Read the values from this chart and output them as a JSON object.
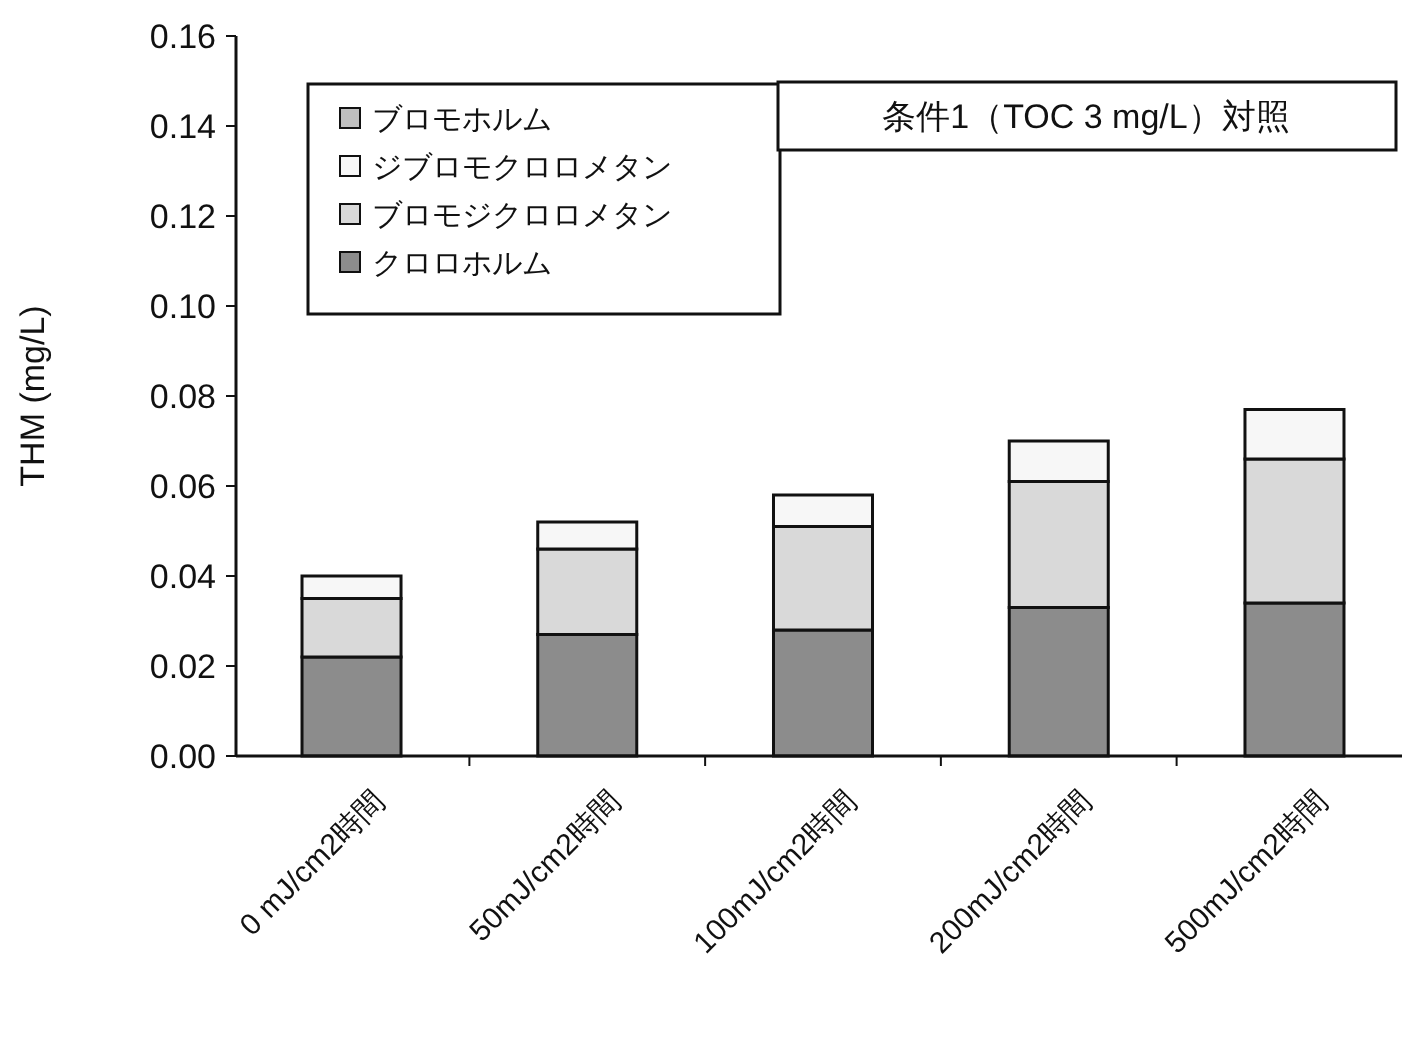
{
  "chart_data": {
    "type": "bar",
    "stacked": true,
    "ylabel": "THM (mg/L)",
    "categories": [
      "0 mJ/cm2時間",
      "50mJ/cm2時間",
      "100mJ/cm2時間",
      "200mJ/cm2時間",
      "500mJ/cm2時間"
    ],
    "series": [
      {
        "name": "クロロホルム",
        "color": "#8c8c8c",
        "values": [
          0.022,
          0.027,
          0.028,
          0.033,
          0.034
        ]
      },
      {
        "name": "ブロモジクロロメタン",
        "color": "#d9d9d9",
        "values": [
          0.013,
          0.019,
          0.023,
          0.028,
          0.032
        ]
      },
      {
        "name": "ジブロモクロロメタン",
        "color": "#f7f7f7",
        "values": [
          0.005,
          0.006,
          0.007,
          0.009,
          0.011
        ]
      },
      {
        "name": "ブロモホルム",
        "color": "#bfbfbf",
        "values": [
          0,
          0,
          0,
          0,
          0
        ]
      }
    ],
    "ylim": [
      0,
      0.16
    ],
    "yticks": [
      {
        "value": 0,
        "label": "0.00"
      },
      {
        "value": 0.02,
        "label": "0.02"
      },
      {
        "value": 0.04,
        "label": "0.04"
      },
      {
        "value": 0.06,
        "label": "0.06"
      },
      {
        "value": 0.08,
        "label": "0.08"
      },
      {
        "value": 0.1,
        "label": "0.10"
      },
      {
        "value": 0.12,
        "label": "0.12"
      },
      {
        "value": 0.14,
        "label": "0.14"
      },
      {
        "value": 0.16,
        "label": "0.16"
      }
    ],
    "grid": false,
    "legend": "top left",
    "annotations": [
      "条件1（TOC 3 mg/L）対照"
    ]
  }
}
